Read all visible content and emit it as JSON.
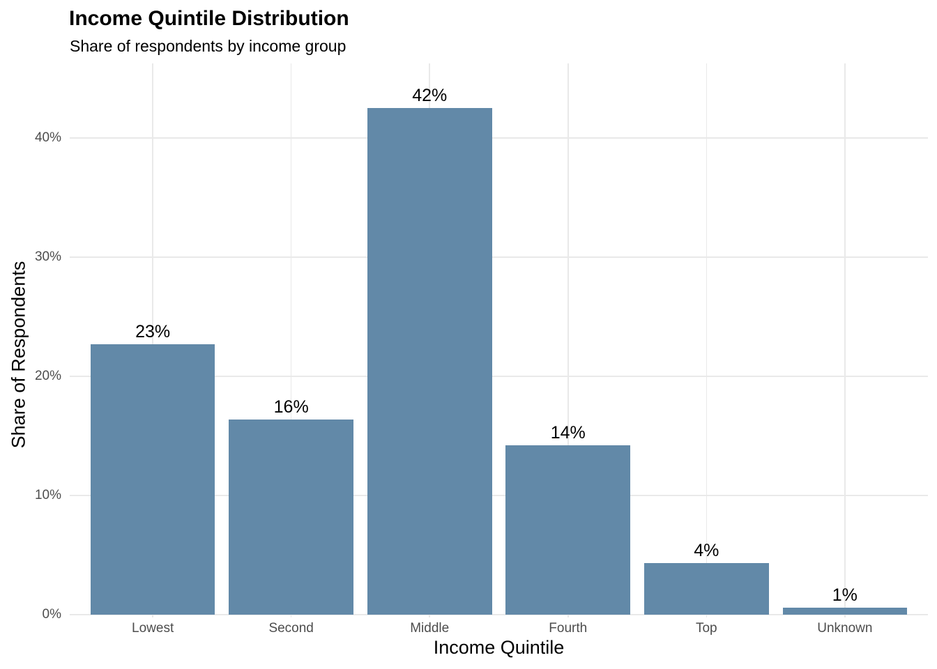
{
  "chart_data": {
    "type": "bar",
    "title": "Income Quintile Distribution",
    "subtitle": "Share of respondents by income group",
    "xlabel": "Income Quintile",
    "ylabel": "Share of Respondents",
    "categories": [
      "Lowest",
      "Second",
      "Middle",
      "Fourth",
      "Top",
      "Unknown"
    ],
    "values": [
      22.7,
      16.4,
      42.5,
      14.2,
      4.3,
      0.6
    ],
    "bar_labels": [
      "23%",
      "16%",
      "42%",
      "14%",
      "4%",
      "1%"
    ],
    "y_ticks": [
      {
        "value": 0,
        "label": "0%"
      },
      {
        "value": 10,
        "label": "10%"
      },
      {
        "value": 20,
        "label": "20%"
      },
      {
        "value": 30,
        "label": "30%"
      },
      {
        "value": 40,
        "label": "40%"
      }
    ],
    "ylim": [
      0,
      46.3
    ],
    "grid": "major-only; horizontal at 10% steps, vertical at category centers",
    "legend": "none",
    "colors": {
      "bar": "#6289A8",
      "grid": "#E9E9E9",
      "tick_text": "#4D4D4D",
      "text": "#000000",
      "background": "#FFFFFF"
    }
  }
}
